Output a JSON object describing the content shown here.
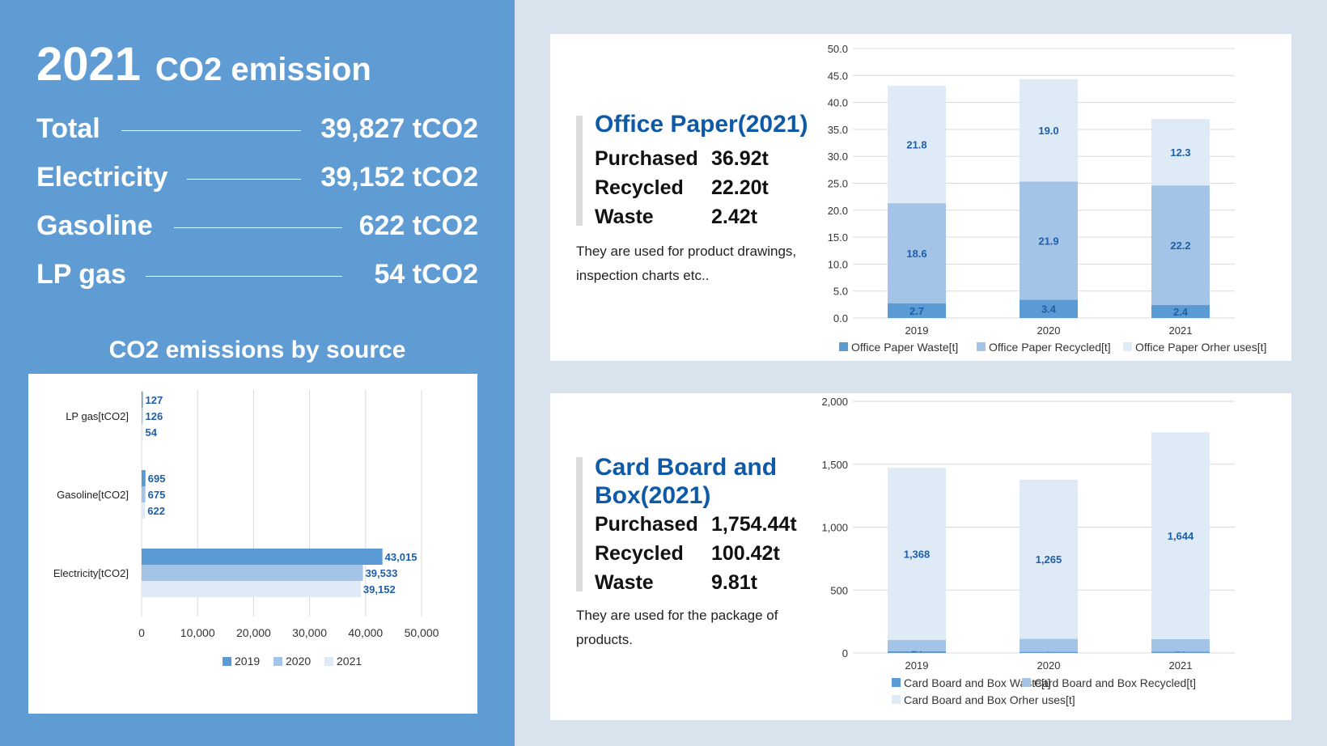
{
  "summary": {
    "year": "2021",
    "title": "CO2 emission",
    "rows": [
      {
        "label": "Total",
        "value": "39,827 tCO2"
      },
      {
        "label": "Electricity",
        "value": "39,152 tCO2"
      },
      {
        "label": "Gasoline",
        "value": "622 tCO2"
      },
      {
        "label": "LP gas",
        "value": "54 tCO2"
      }
    ]
  },
  "source_title": "CO2 emissions by source",
  "office": {
    "title": "Office Paper(2021)",
    "purchased_label": "Purchased",
    "purchased_value": "36.92t",
    "recycled_label": "Recycled",
    "recycled_value": "22.20t",
    "waste_label": "Waste",
    "waste_value": "2.42t",
    "desc": "They are used for product drawings, inspection charts etc.."
  },
  "cardboard": {
    "title": "Card Board and Box(2021)",
    "purchased_label": "Purchased",
    "purchased_value": "1,754.44t",
    "recycled_label": "Recycled",
    "recycled_value": "100.42t",
    "waste_label": "Waste",
    "waste_value": "9.81t",
    "desc": "They are used for the package of products."
  },
  "colors": {
    "dark": "#5b9bd5",
    "mid": "#a3c4e6",
    "light": "#deebf7",
    "label": "#1f5ea8"
  },
  "chart_data": [
    {
      "type": "bar",
      "orientation": "horizontal",
      "categories": [
        "LP gas[tCO2]",
        "Gasoline[tCO2]",
        "Electricity[tCO2]"
      ],
      "series": [
        {
          "name": "2019",
          "values": [
            127,
            695,
            43015
          ],
          "labels": [
            "127",
            "695",
            "43,015"
          ]
        },
        {
          "name": "2020",
          "values": [
            126,
            675,
            39533
          ],
          "labels": [
            "126",
            "675",
            "39,533"
          ]
        },
        {
          "name": "2021",
          "values": [
            54,
            622,
            39152
          ],
          "labels": [
            "54",
            "622",
            "39,152"
          ]
        }
      ],
      "xlim": [
        0,
        50000
      ],
      "xticks": [
        "0",
        "10,000",
        "20,000",
        "30,000",
        "40,000",
        "50,000"
      ],
      "legend": "bottom"
    },
    {
      "type": "bar",
      "stacked": true,
      "categories": [
        "2019",
        "2020",
        "2021"
      ],
      "series": [
        {
          "name": "Office Paper Waste[t]",
          "values": [
            2.7,
            3.4,
            2.4
          ],
          "labels": [
            "2.7",
            "3.4",
            "2.4"
          ]
        },
        {
          "name": "Office Paper Recycled[t]",
          "values": [
            18.6,
            21.9,
            22.2
          ],
          "labels": [
            "18.6",
            "21.9",
            "22.2"
          ]
        },
        {
          "name": "Office Paper Orher uses[t]",
          "values": [
            21.8,
            19.0,
            12.3
          ],
          "labels": [
            "21.8",
            "19.0",
            "12.3"
          ]
        }
      ],
      "ylim": [
        0,
        50
      ],
      "yticks": [
        "0.0",
        "5.0",
        "10.0",
        "15.0",
        "20.0",
        "25.0",
        "30.0",
        "35.0",
        "40.0",
        "45.0",
        "50.0"
      ],
      "legend": "bottom"
    },
    {
      "type": "bar",
      "stacked": true,
      "categories": [
        "2019",
        "2020",
        "2021"
      ],
      "series": [
        {
          "name": "Card Board and Box Waste[t]",
          "values": [
            14,
            9,
            10
          ],
          "labels": [
            "14",
            "9",
            "10"
          ]
        },
        {
          "name": "Card Board and Box Recycled[t]",
          "values": [
            90,
            103,
            100
          ],
          "labels": [
            "90",
            "103",
            "100"
          ]
        },
        {
          "name": "Card Board and Box Orher uses[t]",
          "values": [
            1368,
            1265,
            1644
          ],
          "labels": [
            "1,368",
            "1,265",
            "1,644"
          ]
        }
      ],
      "ylim": [
        0,
        2000
      ],
      "yticks": [
        "0",
        "500",
        "1,000",
        "1,500",
        "2,000"
      ],
      "legend": "bottom"
    }
  ]
}
